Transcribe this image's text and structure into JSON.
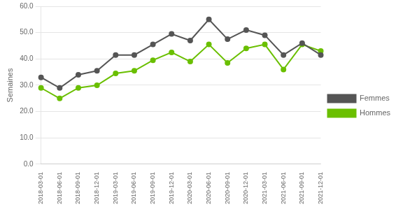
{
  "chart_data": {
    "type": "line",
    "y_label": "Semaines",
    "categories": [
      "2018-03-01",
      "2018-06-01",
      "2018-09-01",
      "2018-12-01",
      "2019-03-01",
      "2019-06-01",
      "2019-09-01",
      "2019-12-01",
      "2020-03-01",
      "2020-06-01",
      "2020-09-01",
      "2020-12-01",
      "2021-03-01",
      "2021-06-01",
      "2021-09-01",
      "2021-12-01"
    ],
    "series": [
      {
        "name": "Femmes",
        "color": "#555555",
        "marker": "circle",
        "values": [
          33,
          29,
          34,
          35.5,
          41.5,
          41.5,
          45.5,
          49.5,
          47,
          55,
          47.5,
          51,
          49,
          41.5,
          46,
          41.5
        ]
      },
      {
        "name": "Hommes",
        "color": "#6abf00",
        "marker": "circle",
        "values": [
          29,
          25,
          29,
          30,
          34.5,
          35.5,
          39.5,
          42.5,
          39,
          45.5,
          38.5,
          44,
          45.5,
          36,
          45.5,
          43
        ]
      }
    ],
    "ylim": [
      0,
      60
    ],
    "yticks": [
      {
        "value": 0,
        "label": "0.0"
      },
      {
        "value": 10,
        "label": "10.0"
      },
      {
        "value": 20,
        "label": "20.0"
      },
      {
        "value": 30,
        "label": "30.0"
      },
      {
        "value": 40,
        "label": "40.0"
      },
      {
        "value": 50,
        "label": "50.0"
      },
      {
        "value": 60,
        "label": "60.0"
      }
    ],
    "grid": true,
    "legend": "right"
  }
}
